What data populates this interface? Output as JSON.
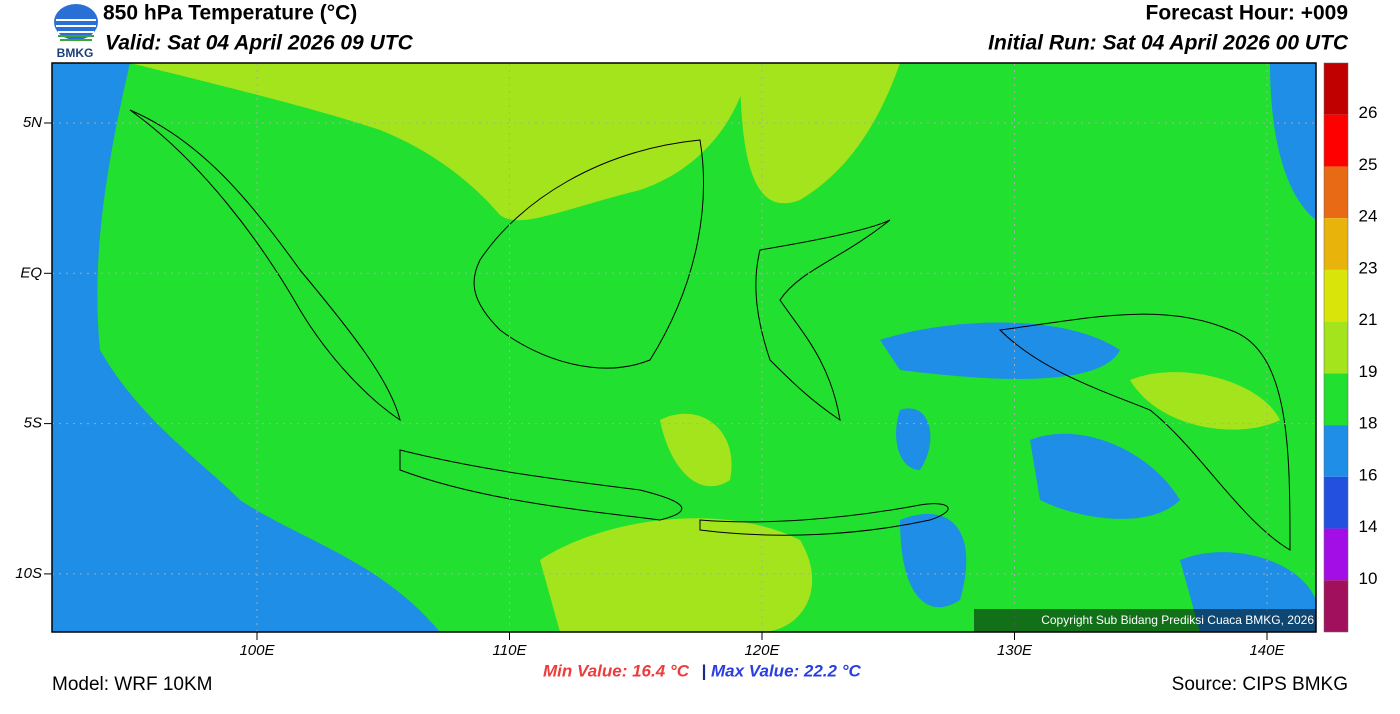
{
  "header": {
    "logo": "BMKG",
    "title": "850 hPa Temperature (°C)",
    "valid": "Valid: Sat 04 April 2026 09 UTC",
    "forecast_hour": "Forecast Hour: +009",
    "initial_run": "Initial Run: Sat 04 April 2026 00 UTC"
  },
  "map": {
    "lat_labels": [
      "5N",
      "EQ",
      "5S",
      "10S"
    ],
    "lon_labels": [
      "100E",
      "110E",
      "120E",
      "130E",
      "140E"
    ],
    "copyright": "Copyright Sub Bidang Prediksi Cuaca BMKG, 2026"
  },
  "colorbar": {
    "labels": [
      26,
      25,
      24,
      23,
      21,
      19,
      18,
      16,
      14,
      10
    ],
    "colors": [
      "#c00000",
      "#ff0000",
      "#e86a14",
      "#e8b40c",
      "#d8e40a",
      "#a4e41c",
      "#22e030",
      "#1e8ee6",
      "#2450e0",
      "#a40ee6",
      "#a0105c"
    ]
  },
  "footer": {
    "model": "Model: WRF 10KM",
    "min_value": "Min Value: 16.4 °C",
    "separator": "|",
    "max_value": "Max Value: 22.2 °C",
    "source": "Source: CIPS BMKG"
  }
}
